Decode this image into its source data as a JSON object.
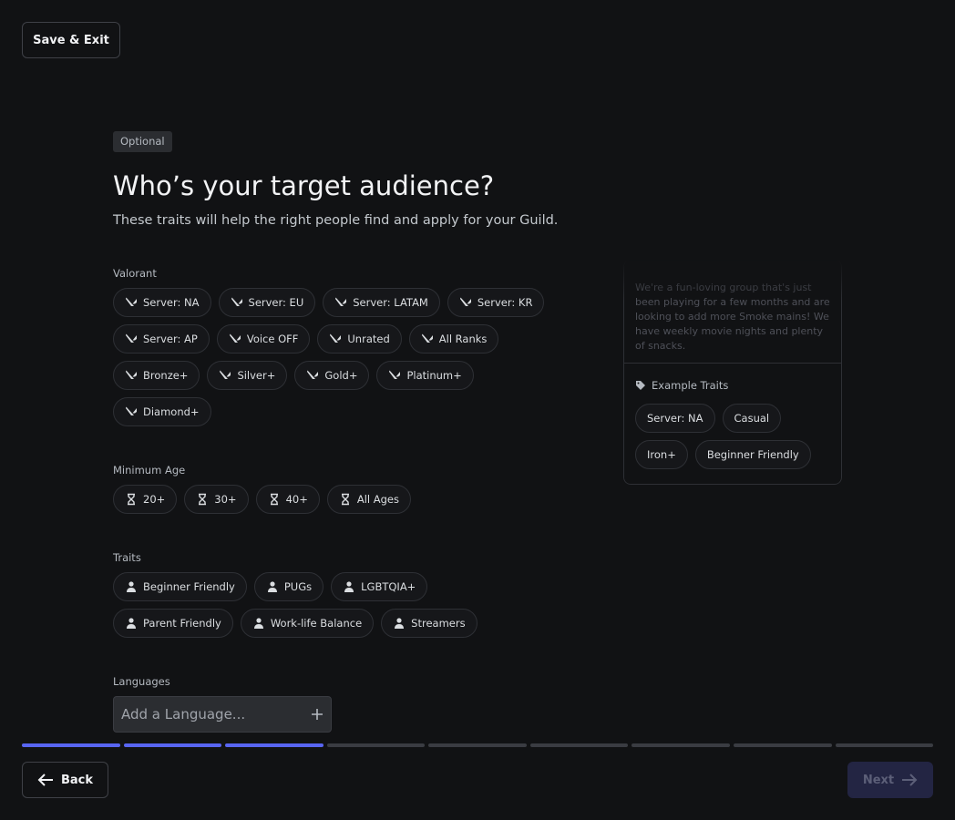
{
  "header": {
    "save_exit": "Save & Exit"
  },
  "badge": "Optional",
  "title": "Who’s your target audience?",
  "subtitle": "These traits will help the right people find and apply for your Guild.",
  "sections": [
    {
      "label": "Valorant",
      "icon": "valorant",
      "chips": [
        "Server: NA",
        "Server: EU",
        "Server: LATAM",
        "Server: KR",
        "Server: AP",
        "Voice OFF",
        "Unrated",
        "All Ranks",
        "Bronze+",
        "Silver+",
        "Gold+",
        "Platinum+",
        "Diamond+"
      ]
    },
    {
      "label": "Minimum Age",
      "icon": "hourglass",
      "chips": [
        "20+",
        "30+",
        "40+",
        "All Ages"
      ]
    },
    {
      "label": "Traits",
      "icon": "person",
      "chips": [
        "Beginner Friendly",
        "PUGs",
        "LGBTQIA+",
        "Parent Friendly",
        "Work-life Balance",
        "Streamers"
      ]
    }
  ],
  "languages": {
    "label": "Languages",
    "placeholder": "Add a Language..."
  },
  "preview": {
    "description": "We're a fun-loving group that's just been playing for a few months and are looking to add more Smoke mains! We have weekly movie nights and plenty of snacks.",
    "traits_label": "Example Traits",
    "traits": [
      "Server: NA",
      "Casual",
      "Iron+",
      "Beginner Friendly"
    ]
  },
  "progress": {
    "steps": 9,
    "completed": 3
  },
  "footer": {
    "back": "Back",
    "next": "Next"
  }
}
